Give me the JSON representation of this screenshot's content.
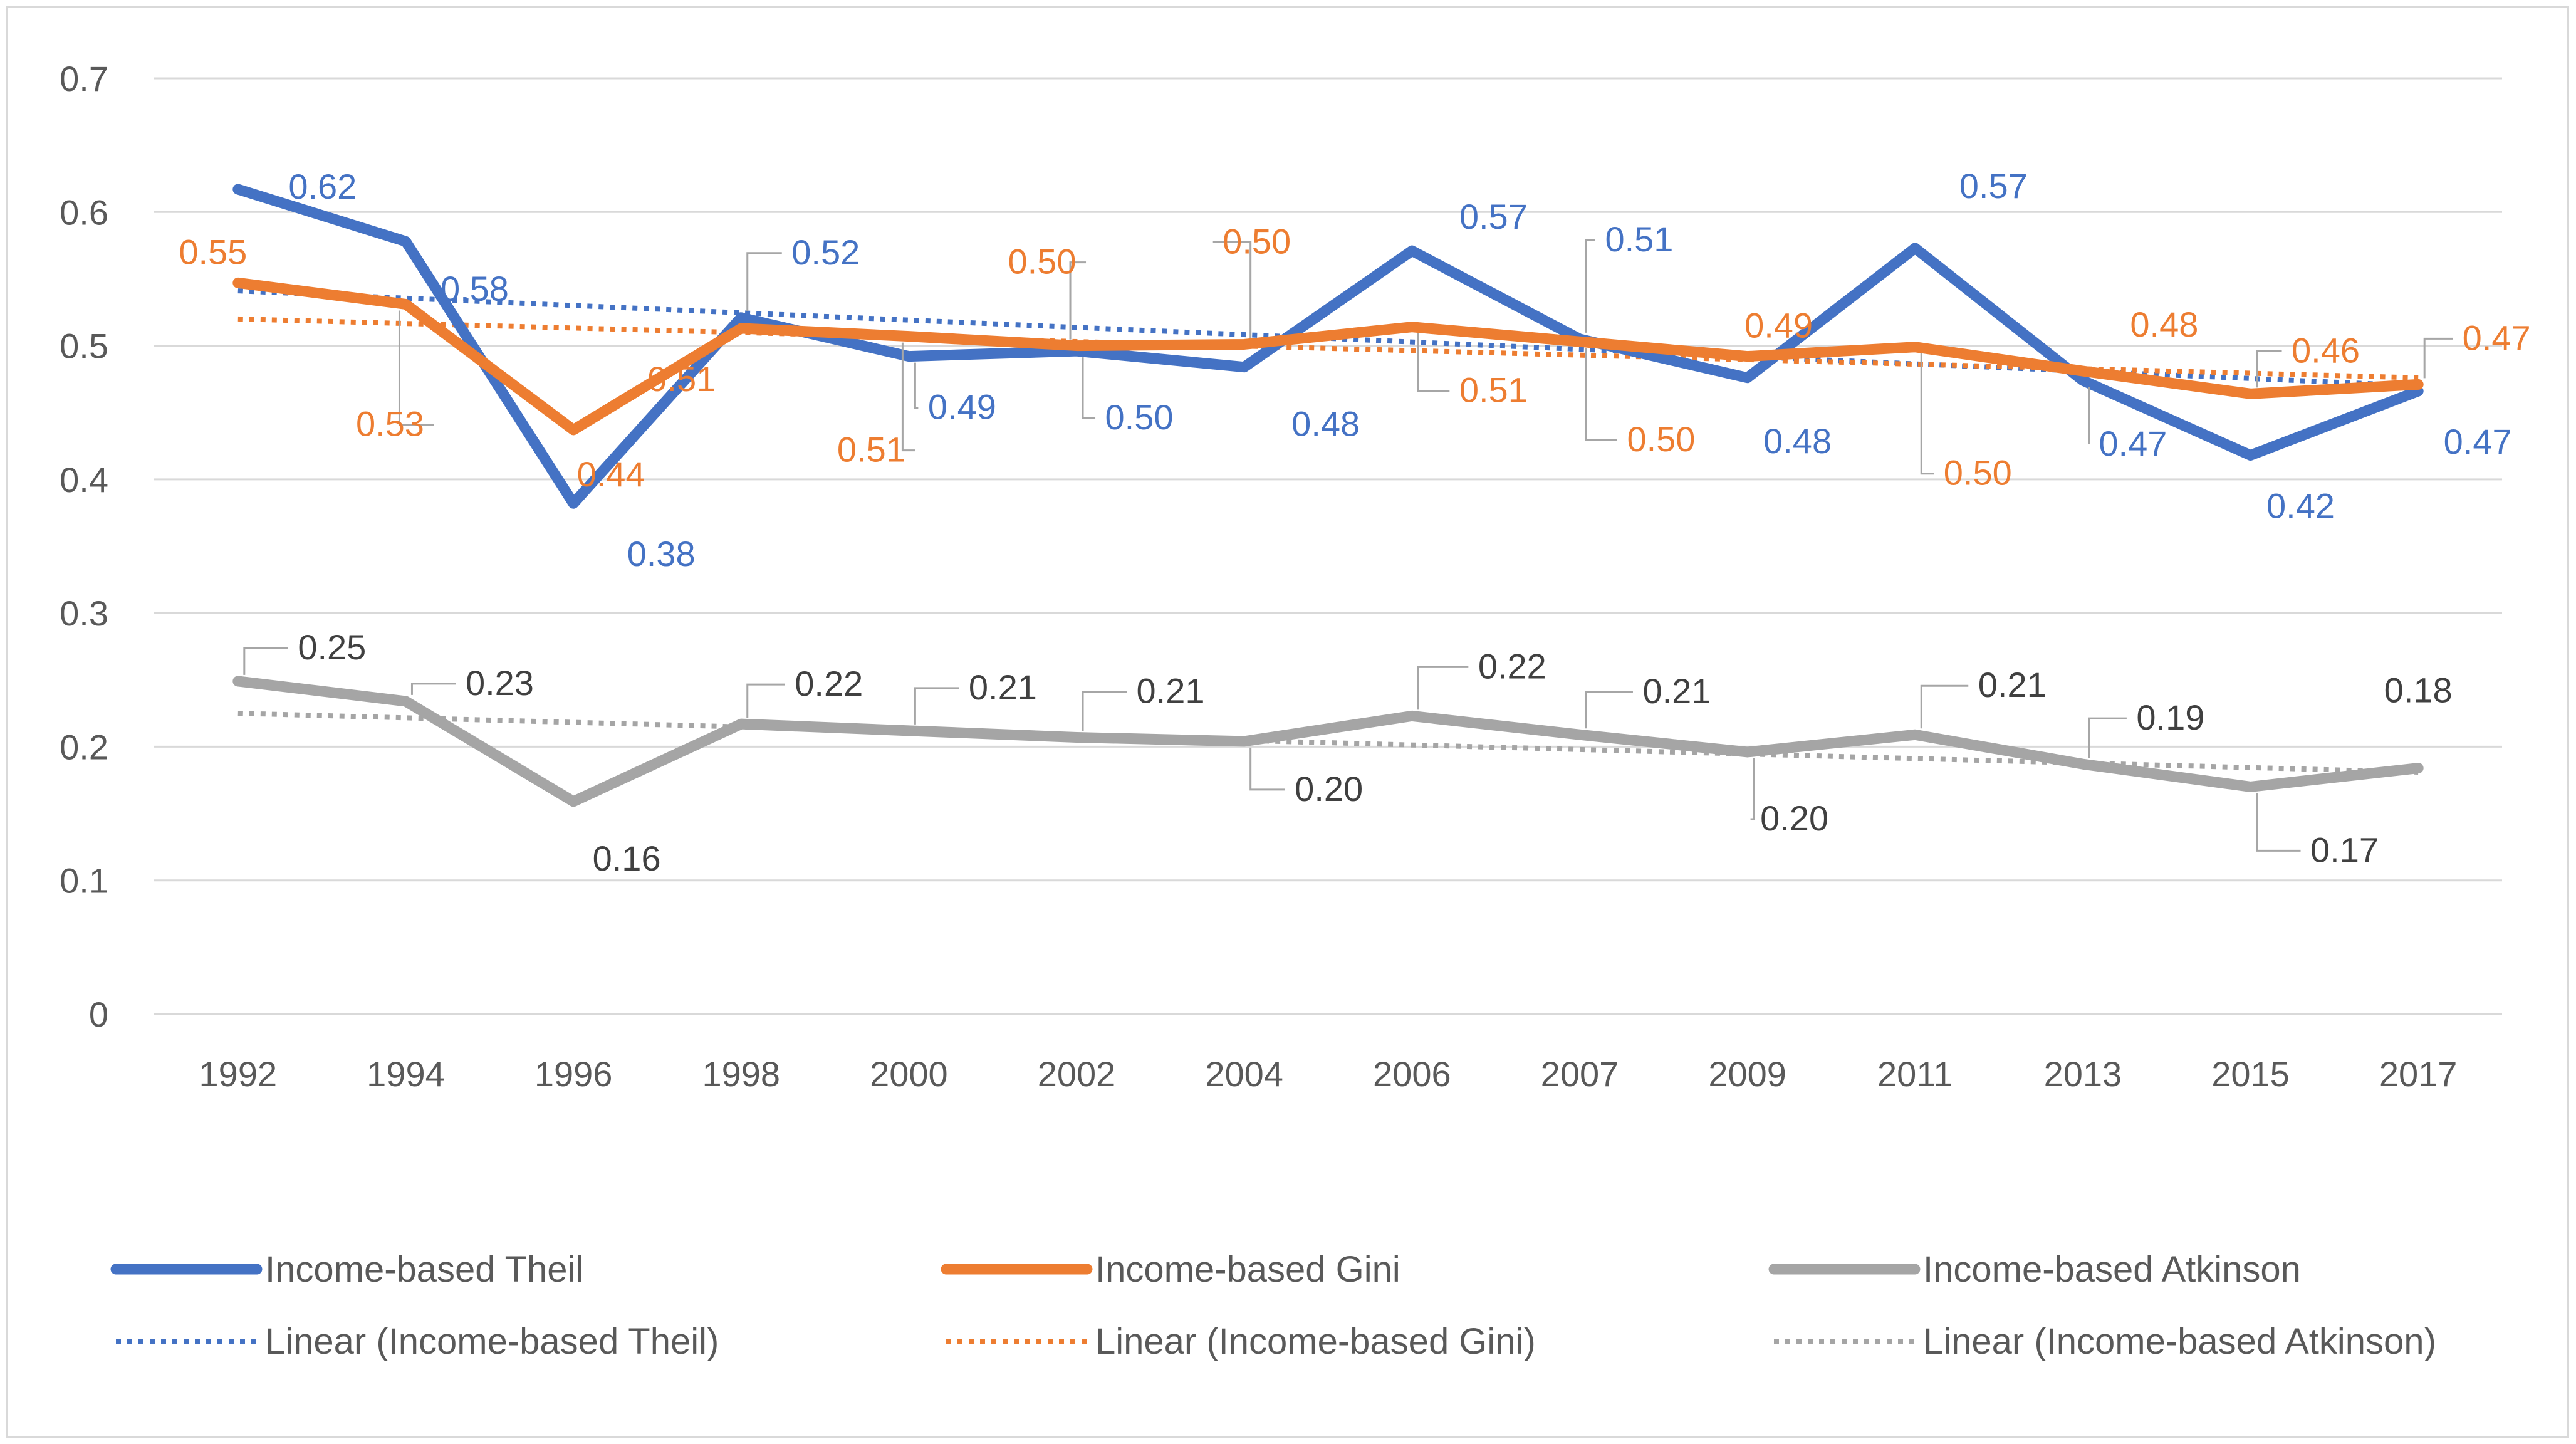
{
  "chart_data": {
    "type": "line",
    "title": "",
    "xlabel": "",
    "ylabel": "",
    "ylim": [
      0,
      0.7
    ],
    "yticks": [
      "0",
      "0.1",
      "0.2",
      "0.3",
      "0.4",
      "0.5",
      "0.6",
      "0.7"
    ],
    "grid": true,
    "legend_position": "bottom",
    "categories": [
      "1992",
      "1994",
      "1996",
      "1998",
      "2000",
      "2002",
      "2004",
      "2006",
      "2007",
      "2009",
      "2011",
      "2013",
      "2015",
      "2017"
    ],
    "series": [
      {
        "name": "Income-based Theil",
        "color": "#4472c4",
        "values": [
          0.617,
          0.578,
          0.382,
          0.521,
          0.492,
          0.496,
          0.484,
          0.571,
          0.505,
          0.476,
          0.573,
          0.474,
          0.418,
          0.466
        ],
        "labels": [
          "0.62",
          "0.58",
          "0.38",
          "0.52",
          "0.49",
          "0.50",
          "0.48",
          "0.57",
          "0.51",
          "0.48",
          "0.57",
          "0.47",
          "0.42",
          "0.47"
        ]
      },
      {
        "name": "Income-based Gini",
        "color": "#ed7d31",
        "values": [
          0.547,
          0.531,
          0.437,
          0.513,
          0.507,
          0.5,
          0.501,
          0.514,
          0.503,
          0.492,
          0.499,
          0.481,
          0.464,
          0.471
        ],
        "labels": [
          "0.55",
          "0.53",
          "0.44",
          "0.51",
          "0.51",
          "0.50",
          "0.50",
          "0.51",
          "0.50",
          "0.49",
          "0.50",
          "0.48",
          "0.46",
          "0.47"
        ]
      },
      {
        "name": "Income-based Atkinson",
        "color": "#a5a5a5",
        "values": [
          0.249,
          0.234,
          0.159,
          0.217,
          0.212,
          0.207,
          0.204,
          0.223,
          0.209,
          0.196,
          0.209,
          0.187,
          0.17,
          0.184
        ],
        "labels": [
          "0.25",
          "0.23",
          "0.16",
          "0.22",
          "0.21",
          "0.21",
          "0.20",
          "0.22",
          "0.21",
          "0.20",
          "0.21",
          "0.19",
          "0.17",
          "0.18"
        ]
      }
    ],
    "trendlines": [
      {
        "name": "Linear (Income-based Theil)",
        "color": "#4472c4",
        "start": 0.541,
        "end": 0.47
      },
      {
        "name": "Linear (Income-based Gini)",
        "color": "#ed7d31",
        "start": 0.52,
        "end": 0.476
      },
      {
        "name": "Linear (Income-based Atkinson)",
        "color": "#a5a5a5",
        "start": 0.225,
        "end": 0.181
      }
    ]
  }
}
